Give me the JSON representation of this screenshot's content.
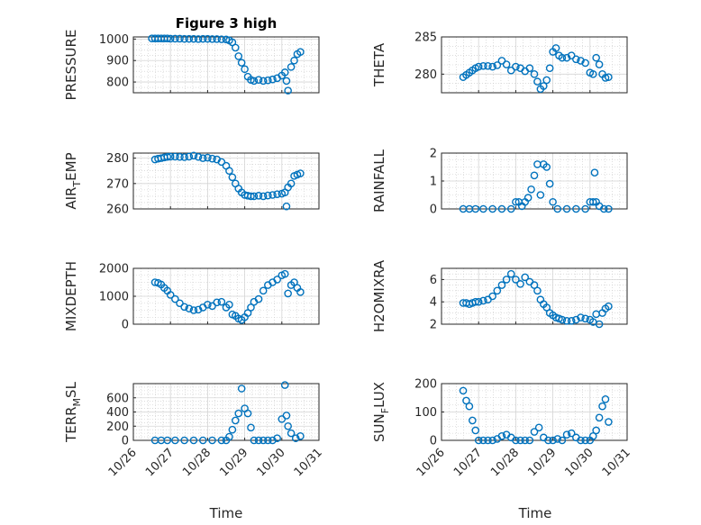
{
  "colors": {
    "series": "#0072BD",
    "axis": "#262626"
  },
  "title": "Figure 3 high",
  "xlabel": "Time",
  "xticks": [
    "10/26",
    "10/27",
    "10/28",
    "10/29",
    "10/30",
    "10/31"
  ],
  "chart_data": [
    {
      "type": "scatter",
      "ylabel": "PRESSURE",
      "xlim": [
        "10/26",
        "10/31"
      ],
      "ylim": [
        750,
        1010
      ],
      "yticks": [
        800,
        900,
        1000
      ],
      "x": [
        "10/26 12:00",
        "10/26 14:00",
        "10/26 16:00",
        "10/26 18:00",
        "10/26 20:00",
        "10/26 22:00",
        "10/27 00:00",
        "10/27 03:00",
        "10/27 06:00",
        "10/27 09:00",
        "10/27 12:00",
        "10/27 15:00",
        "10/27 18:00",
        "10/27 21:00",
        "10/28 00:00",
        "10/28 03:00",
        "10/28 06:00",
        "10/28 09:00",
        "10/28 12:00",
        "10/28 14:00",
        "10/28 16:00",
        "10/28 18:00",
        "10/28 20:00",
        "10/28 22:00",
        "10/29 00:00",
        "10/29 02:00",
        "10/29 04:00",
        "10/29 06:00",
        "10/29 09:00",
        "10/29 12:00",
        "10/29 15:00",
        "10/29 18:00",
        "10/29 21:00",
        "10/30 00:00",
        "10/30 02:00",
        "10/30 03:00",
        "10/30 04:00",
        "10/30 06:00",
        "10/30 08:00",
        "10/30 10:00",
        "10/30 12:00"
      ],
      "y": [
        1003,
        1003,
        1003,
        1003,
        1003,
        1003,
        1002,
        1002,
        1002,
        1001,
        1001,
        1001,
        1000,
        1001,
        1001,
        1000,
        1000,
        999,
        998,
        994,
        985,
        960,
        920,
        890,
        860,
        825,
        810,
        805,
        810,
        805,
        808,
        812,
        818,
        830,
        845,
        805,
        760,
        870,
        900,
        930,
        940
      ]
    },
    {
      "type": "scatter",
      "ylabel": "THETA",
      "xlim": [
        "10/26",
        "10/31"
      ],
      "ylim": [
        277.5,
        285
      ],
      "yticks": [
        280,
        285
      ],
      "x": [
        "10/26 14:00",
        "10/26 16:00",
        "10/26 18:00",
        "10/26 20:00",
        "10/26 22:00",
        "10/27 00:00",
        "10/27 03:00",
        "10/27 06:00",
        "10/27 09:00",
        "10/27 12:00",
        "10/27 15:00",
        "10/27 18:00",
        "10/27 21:00",
        "10/28 00:00",
        "10/28 03:00",
        "10/28 06:00",
        "10/28 09:00",
        "10/28 12:00",
        "10/28 14:00",
        "10/28 16:00",
        "10/28 18:00",
        "10/28 20:00",
        "10/28 22:00",
        "10/29 00:00",
        "10/29 02:00",
        "10/29 04:00",
        "10/29 06:00",
        "10/29 09:00",
        "10/29 12:00",
        "10/29 15:00",
        "10/29 18:00",
        "10/29 21:00",
        "10/30 00:00",
        "10/30 02:00",
        "10/30 04:00",
        "10/30 06:00",
        "10/30 08:00",
        "10/30 10:00",
        "10/30 12:00"
      ],
      "y": [
        279.6,
        279.9,
        280.2,
        280.5,
        280.8,
        281.0,
        281.1,
        281.1,
        281.0,
        281.2,
        281.8,
        281.3,
        280.5,
        281.0,
        280.8,
        280.4,
        280.8,
        280.0,
        279.0,
        278.0,
        278.4,
        279.2,
        280.8,
        283.0,
        283.5,
        282.5,
        282.2,
        282.2,
        282.5,
        282.0,
        281.8,
        281.5,
        280.2,
        280.0,
        282.2,
        281.3,
        280.0,
        279.5,
        279.6
      ]
    },
    {
      "type": "scatter",
      "ylabel": "AIR_TEMP",
      "xlim": [
        "10/26",
        "10/31"
      ],
      "ylim": [
        260,
        282
      ],
      "yticks": [
        260,
        270,
        280
      ],
      "x": [
        "10/26 14:00",
        "10/26 16:00",
        "10/26 18:00",
        "10/26 20:00",
        "10/26 22:00",
        "10/27 00:00",
        "10/27 03:00",
        "10/27 06:00",
        "10/27 09:00",
        "10/27 12:00",
        "10/27 15:00",
        "10/27 18:00",
        "10/27 21:00",
        "10/28 00:00",
        "10/28 03:00",
        "10/28 06:00",
        "10/28 09:00",
        "10/28 12:00",
        "10/28 14:00",
        "10/28 16:00",
        "10/28 18:00",
        "10/28 20:00",
        "10/28 22:00",
        "10/29 00:00",
        "10/29 02:00",
        "10/29 04:00",
        "10/29 06:00",
        "10/29 09:00",
        "10/29 12:00",
        "10/29 15:00",
        "10/29 18:00",
        "10/29 21:00",
        "10/30 00:00",
        "10/30 02:00",
        "10/30 03:00",
        "10/30 04:00",
        "10/30 06:00",
        "10/30 08:00",
        "10/30 10:00",
        "10/30 12:00"
      ],
      "y": [
        279.5,
        279.8,
        280.0,
        280.3,
        280.5,
        280.6,
        280.6,
        280.5,
        280.4,
        280.6,
        281.0,
        280.5,
        280.0,
        280.2,
        279.8,
        279.5,
        278.5,
        277.0,
        275.0,
        272.5,
        270.0,
        268.0,
        266.5,
        265.5,
        265.2,
        265.0,
        265.0,
        265.2,
        265.0,
        265.3,
        265.5,
        265.8,
        266.0,
        266.5,
        261.0,
        268.5,
        270.0,
        273.0,
        273.5,
        274.0
      ]
    },
    {
      "type": "scatter",
      "ylabel": "RAINFALL",
      "xlim": [
        "10/26",
        "10/31"
      ],
      "ylim": [
        0,
        2
      ],
      "yticks": [
        0,
        1,
        2
      ],
      "x": [
        "10/26 14:00",
        "10/26 18:00",
        "10/26 22:00",
        "10/27 03:00",
        "10/27 09:00",
        "10/27 15:00",
        "10/27 21:00",
        "10/28 00:00",
        "10/28 02:00",
        "10/28 04:00",
        "10/28 06:00",
        "10/28 08:00",
        "10/28 10:00",
        "10/28 12:00",
        "10/28 14:00",
        "10/28 16:00",
        "10/28 18:00",
        "10/28 20:00",
        "10/28 22:00",
        "10/29 00:00",
        "10/29 03:00",
        "10/29 09:00",
        "10/29 15:00",
        "10/29 21:00",
        "10/30 00:00",
        "10/30 02:00",
        "10/30 03:00",
        "10/30 04:00",
        "10/30 06:00",
        "10/30 09:00",
        "10/30 12:00"
      ],
      "y": [
        0,
        0,
        0,
        0,
        0,
        0,
        0,
        0.25,
        0.25,
        0.1,
        0.25,
        0.4,
        0.7,
        1.2,
        1.6,
        0.5,
        1.6,
        1.5,
        0.9,
        0.25,
        0,
        0,
        0,
        0,
        0.25,
        0.25,
        1.3,
        0.25,
        0.1,
        0,
        0
      ]
    },
    {
      "type": "scatter",
      "ylabel": "MIXDEPTH",
      "xlim": [
        "10/26",
        "10/31"
      ],
      "ylim": [
        0,
        2000
      ],
      "yticks": [
        0,
        1000,
        2000
      ],
      "x": [
        "10/26 14:00",
        "10/26 16:00",
        "10/26 18:00",
        "10/26 20:00",
        "10/26 22:00",
        "10/27 00:00",
        "10/27 03:00",
        "10/27 06:00",
        "10/27 09:00",
        "10/27 12:00",
        "10/27 15:00",
        "10/27 18:00",
        "10/27 21:00",
        "10/28 00:00",
        "10/28 03:00",
        "10/28 06:00",
        "10/28 09:00",
        "10/28 12:00",
        "10/28 14:00",
        "10/28 16:00",
        "10/28 18:00",
        "10/28 20:00",
        "10/28 22:00",
        "10/29 00:00",
        "10/29 02:00",
        "10/29 04:00",
        "10/29 06:00",
        "10/29 09:00",
        "10/29 12:00",
        "10/29 15:00",
        "10/29 18:00",
        "10/29 21:00",
        "10/30 00:00",
        "10/30 02:00",
        "10/30 04:00",
        "10/30 06:00",
        "10/30 08:00",
        "10/30 10:00",
        "10/30 12:00"
      ],
      "y": [
        1500,
        1480,
        1420,
        1300,
        1200,
        1050,
        900,
        750,
        620,
        560,
        500,
        520,
        600,
        700,
        650,
        780,
        800,
        600,
        700,
        350,
        300,
        200,
        150,
        250,
        400,
        600,
        800,
        900,
        1200,
        1400,
        1500,
        1600,
        1750,
        1800,
        1100,
        1400,
        1500,
        1300,
        1150
      ]
    },
    {
      "type": "scatter",
      "ylabel": "H2OMIXRA",
      "xlim": [
        "10/26",
        "10/31"
      ],
      "ylim": [
        2,
        7
      ],
      "yticks": [
        2,
        4,
        6
      ],
      "x": [
        "10/26 14:00",
        "10/26 16:00",
        "10/26 18:00",
        "10/26 20:00",
        "10/26 22:00",
        "10/27 00:00",
        "10/27 03:00",
        "10/27 06:00",
        "10/27 09:00",
        "10/27 12:00",
        "10/27 15:00",
        "10/27 18:00",
        "10/27 21:00",
        "10/28 00:00",
        "10/28 03:00",
        "10/28 06:00",
        "10/28 09:00",
        "10/28 12:00",
        "10/28 14:00",
        "10/28 16:00",
        "10/28 18:00",
        "10/28 20:00",
        "10/28 22:00",
        "10/29 00:00",
        "10/29 02:00",
        "10/29 04:00",
        "10/29 06:00",
        "10/29 09:00",
        "10/29 12:00",
        "10/29 15:00",
        "10/29 18:00",
        "10/29 21:00",
        "10/30 00:00",
        "10/30 02:00",
        "10/30 04:00",
        "10/30 06:00",
        "10/30 08:00",
        "10/30 10:00",
        "10/30 12:00"
      ],
      "y": [
        3.9,
        3.9,
        3.8,
        3.9,
        4.0,
        4.0,
        4.1,
        4.2,
        4.5,
        5.0,
        5.5,
        6.0,
        6.5,
        6.0,
        5.6,
        6.2,
        5.8,
        5.5,
        5.0,
        4.2,
        3.8,
        3.5,
        3.0,
        2.8,
        2.6,
        2.5,
        2.4,
        2.3,
        2.3,
        2.4,
        2.6,
        2.5,
        2.4,
        2.2,
        2.9,
        2.0,
        3.0,
        3.4,
        3.6
      ]
    },
    {
      "type": "scatter",
      "ylabel": "TERR_MSL",
      "xlim": [
        "10/26",
        "10/31"
      ],
      "ylim": [
        0,
        800
      ],
      "yticks": [
        0,
        200,
        400,
        600
      ],
      "x": [
        "10/26 14:00",
        "10/26 18:00",
        "10/26 22:00",
        "10/27 03:00",
        "10/27 09:00",
        "10/27 15:00",
        "10/27 21:00",
        "10/28 03:00",
        "10/28 09:00",
        "10/28 12:00",
        "10/28 14:00",
        "10/28 16:00",
        "10/28 18:00",
        "10/28 20:00",
        "10/28 22:00",
        "10/29 00:00",
        "10/29 02:00",
        "10/29 04:00",
        "10/29 06:00",
        "10/29 09:00",
        "10/29 12:00",
        "10/29 15:00",
        "10/29 18:00",
        "10/29 21:00",
        "10/30 00:00",
        "10/30 02:00",
        "10/30 03:00",
        "10/30 04:00",
        "10/30 06:00",
        "10/30 09:00",
        "10/30 12:00"
      ],
      "y": [
        0,
        0,
        0,
        0,
        0,
        0,
        0,
        0,
        0,
        0,
        50,
        150,
        280,
        380,
        730,
        450,
        380,
        180,
        0,
        0,
        0,
        0,
        0,
        30,
        300,
        780,
        350,
        200,
        100,
        30,
        60
      ]
    },
    {
      "type": "scatter",
      "ylabel": "SUN_FLUX",
      "xlim": [
        "10/26",
        "10/31"
      ],
      "ylim": [
        0,
        200
      ],
      "yticks": [
        0,
        100,
        200
      ],
      "x": [
        "10/26 14:00",
        "10/26 16:00",
        "10/26 18:00",
        "10/26 20:00",
        "10/26 22:00",
        "10/27 00:00",
        "10/27 03:00",
        "10/27 06:00",
        "10/27 09:00",
        "10/27 12:00",
        "10/27 15:00",
        "10/27 18:00",
        "10/27 21:00",
        "10/28 00:00",
        "10/28 03:00",
        "10/28 06:00",
        "10/28 09:00",
        "10/28 12:00",
        "10/28 15:00",
        "10/28 18:00",
        "10/28 21:00",
        "10/29 00:00",
        "10/29 03:00",
        "10/29 06:00",
        "10/29 09:00",
        "10/29 12:00",
        "10/29 15:00",
        "10/29 18:00",
        "10/29 21:00",
        "10/30 00:00",
        "10/30 02:00",
        "10/30 04:00",
        "10/30 06:00",
        "10/30 08:00",
        "10/30 10:00",
        "10/30 12:00"
      ],
      "y": [
        175,
        140,
        120,
        70,
        35,
        0,
        0,
        0,
        0,
        5,
        15,
        20,
        10,
        0,
        0,
        0,
        0,
        30,
        45,
        10,
        0,
        0,
        5,
        0,
        20,
        25,
        10,
        0,
        0,
        0,
        15,
        35,
        80,
        120,
        145,
        65
      ]
    }
  ]
}
